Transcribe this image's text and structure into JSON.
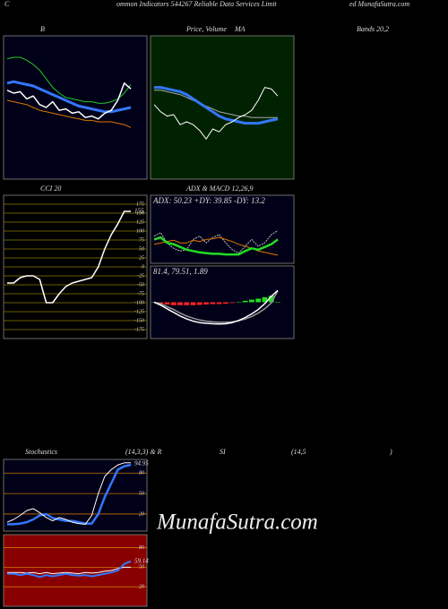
{
  "captions": [
    "C",
    "ommon Indicators 544267 Reliable Data Services Limit",
    "ed MunafaSutra.com",
    "B",
    "Price, Volume",
    "MA",
    "Bands 20,2",
    "CCI 20",
    "ADX & MACD 12,26,9",
    "Stochastics",
    "(14,3,3) & R",
    "SI",
    "(14,5",
    ")"
  ],
  "watermark": "MunafaSutra.com",
  "chart_data": [
    {
      "type": "line",
      "background": "#000018",
      "ylim": [
        0,
        100
      ],
      "series": [
        {
          "color": "#22cc22",
          "width": 1,
          "values": [
            84,
            85,
            85,
            83,
            80,
            76,
            70,
            64,
            60,
            57,
            56,
            55,
            54,
            54,
            53,
            53,
            54,
            56,
            60,
            66
          ]
        },
        {
          "color": "#3377ff",
          "width": 3,
          "values": [
            67,
            68,
            67,
            66,
            65,
            63,
            61,
            59,
            57,
            55,
            53,
            51,
            50,
            49,
            48,
            47,
            47,
            48,
            49,
            50
          ]
        },
        {
          "color": "#dd7700",
          "width": 1,
          "values": [
            55,
            54,
            53,
            52,
            50,
            48,
            47,
            46,
            45,
            44,
            43,
            42,
            41,
            41,
            40,
            40,
            40,
            39,
            38,
            36
          ]
        },
        {
          "color": "#ffffff",
          "width": 1.5,
          "values": [
            62,
            60,
            61,
            56,
            58,
            52,
            50,
            54,
            48,
            49,
            46,
            47,
            43,
            44,
            42,
            46,
            48,
            55,
            67,
            63
          ]
        }
      ]
    },
    {
      "type": "line",
      "background": "#002200",
      "ylim": [
        0,
        100
      ],
      "series": [
        {
          "color": "#aaaaaa",
          "width": 1,
          "values": [
            62,
            62,
            61,
            60,
            59,
            57,
            55,
            53,
            51,
            49,
            47,
            46,
            45,
            44,
            44,
            43,
            43,
            43,
            43,
            43
          ]
        },
        {
          "color": "#3377ff",
          "width": 3,
          "values": [
            64,
            64,
            63,
            62,
            61,
            59,
            56,
            53,
            50,
            47,
            44,
            42,
            41,
            40,
            39,
            39,
            39,
            40,
            41,
            42
          ]
        },
        {
          "color": "#ffffff",
          "width": 1,
          "values": [
            52,
            47,
            44,
            45,
            38,
            40,
            38,
            34,
            28,
            35,
            33,
            38,
            40,
            43,
            45,
            48,
            55,
            64,
            63,
            58
          ]
        }
      ]
    },
    {
      "type": "line",
      "background": "#000000",
      "grid_color": "#8a7a00",
      "ylim": [
        -200,
        200
      ],
      "yticks": [
        175,
        150,
        125,
        100,
        75,
        50,
        25,
        0,
        -25,
        -50,
        -75,
        -100,
        -125,
        -150,
        -175
      ],
      "series": [
        {
          "color": "#ffffff",
          "width": 1.5,
          "label_last": true,
          "values": [
            -45,
            -45,
            -30,
            -25,
            -25,
            -35,
            -100,
            -100,
            -75,
            -55,
            -45,
            -40,
            -35,
            -30,
            0,
            50,
            90,
            120,
            155,
            155
          ]
        }
      ]
    },
    {
      "type": "line",
      "background": "#000018",
      "ylim": [
        0,
        100
      ],
      "annotation": "ADX: 50.23 +DY: 39.85 -DY: 13.2",
      "series": [
        {
          "color": "#bbbbbb",
          "width": 1,
          "dash": true,
          "values": [
            40,
            45,
            30,
            22,
            18,
            20,
            35,
            40,
            30,
            38,
            42,
            30,
            20,
            15,
            25,
            35,
            25,
            30,
            42,
            48
          ]
        },
        {
          "color": "#dd7700",
          "width": 1,
          "values": [
            28,
            30,
            32,
            34,
            30,
            30,
            34,
            32,
            35,
            36,
            38,
            35,
            32,
            28,
            25,
            22,
            18,
            16,
            14,
            12
          ]
        },
        {
          "color": "#22dd22",
          "width": 2.5,
          "values": [
            35,
            38,
            30,
            28,
            24,
            20,
            18,
            16,
            15,
            14,
            14,
            13,
            13,
            13,
            18,
            22,
            20,
            24,
            28,
            35
          ]
        }
      ]
    },
    {
      "type": "line",
      "background": "#000018",
      "ylim": [
        -250,
        250
      ],
      "annotation": "81.4, 79.51, 1.89",
      "series": [
        {
          "kind": "bar",
          "color": "#ff2222",
          "positive_color": "#22dd22",
          "values": [
            0,
            -10,
            -15,
            -20,
            -20,
            -20,
            -20,
            -18,
            -15,
            -13,
            -12,
            -10,
            -5,
            3,
            10,
            18,
            25,
            35,
            45,
            1.89
          ]
        },
        {
          "color": "#999999",
          "width": 1.5,
          "values": [
            0,
            -10,
            -30,
            -50,
            -75,
            -95,
            -110,
            -122,
            -130,
            -135,
            -138,
            -138,
            -135,
            -128,
            -115,
            -98,
            -75,
            -45,
            -5,
            79.51
          ]
        },
        {
          "color": "#ffffff",
          "width": 1.5,
          "values": [
            0,
            -20,
            -45,
            -70,
            -95,
            -115,
            -130,
            -140,
            -145,
            -148,
            -150,
            -148,
            -140,
            -125,
            -105,
            -80,
            -50,
            -10,
            40,
            81.4
          ]
        }
      ]
    },
    {
      "type": "line",
      "background": "#000018",
      "grid_color": "#cc7700",
      "ylim": [
        -5,
        100
      ],
      "yticks": [
        80,
        50,
        20
      ],
      "series": [
        {
          "color": "#3377ff",
          "width": 2.5,
          "values": [
            5,
            5,
            6,
            8,
            12,
            18,
            20,
            14,
            12,
            10,
            10,
            8,
            6,
            6,
            20,
            45,
            65,
            85,
            90,
            92
          ]
        },
        {
          "color": "#ffffff",
          "width": 1,
          "label_last": true,
          "values": [
            8,
            12,
            18,
            25,
            28,
            22,
            15,
            10,
            15,
            12,
            8,
            6,
            5,
            18,
            50,
            75,
            85,
            92,
            95,
            94.95
          ]
        }
      ]
    },
    {
      "type": "line",
      "background": "#880000",
      "grid_color": "#cc7700",
      "ylim": [
        -10,
        100
      ],
      "yticks": [
        80,
        50,
        20
      ],
      "series": [
        {
          "color": "#ffffff",
          "width": 1,
          "values": [
            42,
            42,
            42,
            41,
            42,
            40,
            42,
            40,
            41,
            42,
            41,
            40,
            42,
            41,
            42,
            44,
            45,
            48,
            50,
            50
          ]
        },
        {
          "color": "#3377ff",
          "width": 2,
          "label_last": true,
          "values": [
            40,
            40,
            38,
            40,
            38,
            35,
            38,
            36,
            38,
            40,
            38,
            37,
            38,
            36,
            38,
            40,
            42,
            45,
            55,
            59.14
          ]
        }
      ]
    }
  ]
}
